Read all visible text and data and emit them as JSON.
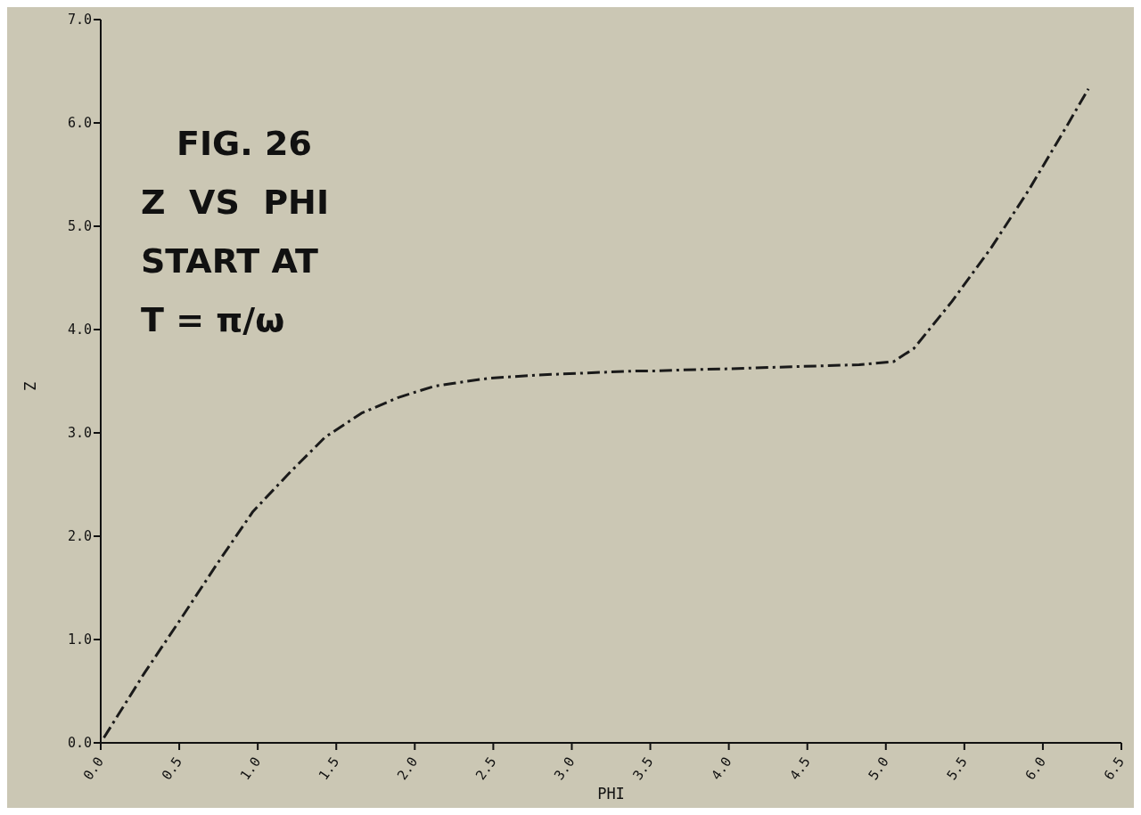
{
  "chart_data": {
    "type": "line",
    "title": "FIG. 26",
    "annotations": [
      "Z  VS  PHI",
      "START AT",
      "T = π/ω"
    ],
    "xlabel": "PHI",
    "ylabel": "Z",
    "x": [
      0.02,
      0.28,
      0.51,
      0.74,
      0.97,
      1.2,
      1.43,
      1.66,
      1.89,
      2.12,
      2.25,
      2.33,
      2.48,
      2.78,
      3.41,
      3.54,
      3.71,
      3.99,
      4.4,
      4.83,
      5.05,
      5.18,
      5.42,
      5.67,
      5.91,
      6.16,
      6.29
    ],
    "series": [
      {
        "color": "#1a1a1a",
        "values": [
          0.05,
          0.68,
          1.2,
          1.73,
          2.24,
          2.61,
          2.96,
          3.19,
          3.34,
          3.45,
          3.48,
          3.5,
          3.53,
          3.56,
          3.6,
          3.6,
          3.61,
          3.62,
          3.64,
          3.66,
          3.69,
          3.82,
          4.27,
          4.79,
          5.35,
          5.99,
          6.33
        ]
      }
    ],
    "xlim": [
      0,
      6.5
    ],
    "xticks": [
      {
        "value": 0,
        "label": "0.0"
      },
      {
        "value": 0.5,
        "label": "0.5"
      },
      {
        "value": 1,
        "label": "1.0"
      },
      {
        "value": 1.5,
        "label": "1.5"
      },
      {
        "value": 2,
        "label": "2.0"
      },
      {
        "value": 2.5,
        "label": "2.5"
      },
      {
        "value": 3,
        "label": "3.0"
      },
      {
        "value": 3.5,
        "label": "3.5"
      },
      {
        "value": 4,
        "label": "4.0"
      },
      {
        "value": 4.5,
        "label": "4.5"
      },
      {
        "value": 5,
        "label": "5.0"
      },
      {
        "value": 5.5,
        "label": "5.5"
      },
      {
        "value": 6,
        "label": "6.0"
      },
      {
        "value": 6.5,
        "label": "6.5"
      }
    ],
    "ylim": [
      0,
      7
    ],
    "yticks": [
      {
        "value": 0,
        "label": "0.0"
      },
      {
        "value": 1,
        "label": "1.0"
      },
      {
        "value": 2,
        "label": "2.0"
      },
      {
        "value": 3,
        "label": "3.0"
      },
      {
        "value": 4,
        "label": "4.0"
      },
      {
        "value": 5,
        "label": "5.0"
      },
      {
        "value": 6,
        "label": "6.0"
      },
      {
        "value": 7,
        "label": "7.0"
      }
    ],
    "grid": false,
    "legend": false,
    "marker": "none",
    "line_style": "dashed"
  }
}
